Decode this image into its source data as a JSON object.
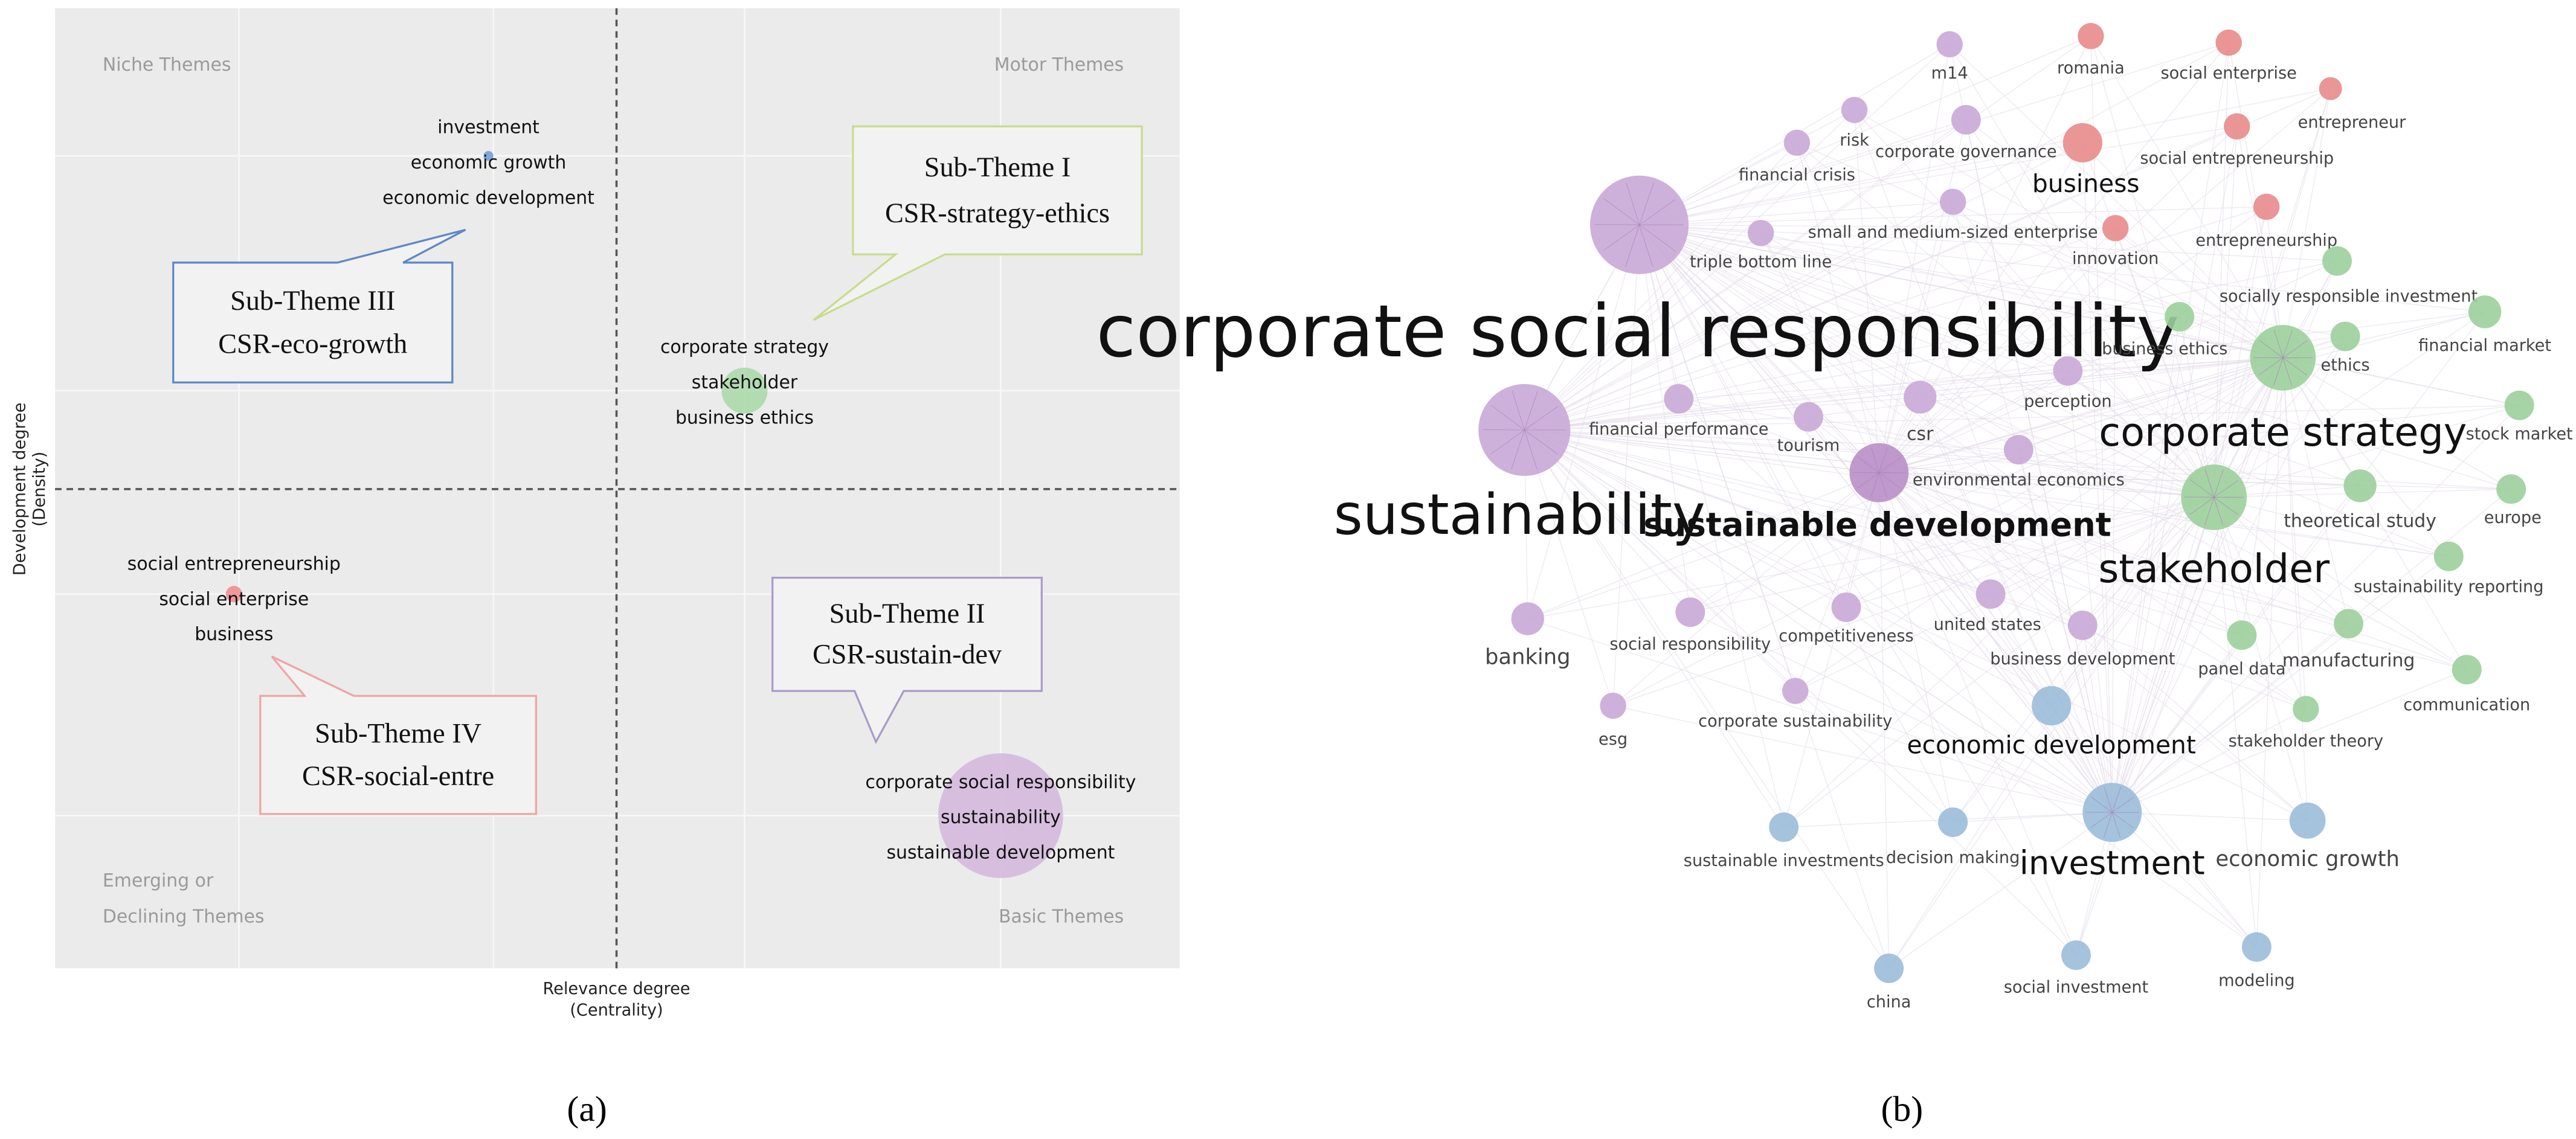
{
  "panel_a": {
    "caption": "(a)",
    "x_axis_label": [
      "Relevance degree",
      "(Centrality)"
    ],
    "y_axis_label": [
      "Development degree",
      "(Density)"
    ],
    "quadrants": [
      [
        "Niche Themes"
      ],
      [
        "Motor Themes"
      ],
      [
        "Emerging or",
        "Declining Themes"
      ],
      [
        "Basic Themes"
      ]
    ],
    "clusters": [
      {
        "terms": [
          "investment",
          "economic growth",
          "economic development"
        ],
        "color": "#6a9bd8"
      },
      {
        "terms": [
          "corporate strategy",
          "stakeholder",
          "business ethics"
        ],
        "color": "#a8d8a8"
      },
      {
        "terms": [
          "social entrepreneurship",
          "social enterprise",
          "business"
        ],
        "color": "#f08a8a"
      },
      {
        "terms": [
          "corporate social responsibility",
          "sustainability",
          "sustainable development"
        ],
        "color": "#d3b6dd"
      }
    ],
    "callouts": [
      {
        "lines": [
          "Sub-Theme I",
          "CSR-strategy-ethics"
        ],
        "color": "#c8dc8c"
      },
      {
        "lines": [
          "Sub-Theme II",
          "CSR-sustain-dev"
        ],
        "color": "#a99bc9"
      },
      {
        "lines": [
          "Sub-Theme III",
          "CSR-eco-growth"
        ],
        "color": "#5f88c6"
      },
      {
        "lines": [
          "Sub-Theme IV",
          "CSR-social-entre"
        ],
        "color": "#f0a4a4"
      }
    ]
  },
  "panel_b": {
    "caption": "(b)",
    "nodes": [
      {
        "label": "m14",
        "color": "#c9a9d6"
      },
      {
        "label": "romania",
        "color": "#e88b8b"
      },
      {
        "label": "social enterprise",
        "color": "#e88b8b"
      },
      {
        "label": "entrepreneur",
        "color": "#e88b8b"
      },
      {
        "label": "risk",
        "color": "#c9a9d6"
      },
      {
        "label": "corporate governance",
        "color": "#c9a9d6"
      },
      {
        "label": "business",
        "color": "#e88b8b"
      },
      {
        "label": "social entrepreneurship",
        "color": "#e88b8b"
      },
      {
        "label": "financial crisis",
        "color": "#c9a9d6"
      },
      {
        "label": "small and medium-sized enterprise",
        "color": "#c9a9d6"
      },
      {
        "label": "innovation",
        "color": "#e88b8b"
      },
      {
        "label": "entrepreneurship",
        "color": "#e88b8b"
      },
      {
        "label": "triple bottom line",
        "color": "#c9a9d6"
      },
      {
        "label": "corporate social responsibility",
        "color": "#c9a9d6"
      },
      {
        "label": "socially responsible investment",
        "color": "#9ccf9c"
      },
      {
        "label": "business ethics",
        "color": "#9ccf9c"
      },
      {
        "label": "ethics",
        "color": "#9ccf9c"
      },
      {
        "label": "financial market",
        "color": "#9ccf9c"
      },
      {
        "label": "corporate strategy",
        "color": "#9ccf9c"
      },
      {
        "label": "perception",
        "color": "#c9a9d6"
      },
      {
        "label": "stock market",
        "color": "#9ccf9c"
      },
      {
        "label": "sustainability",
        "color": "#c9a9d6"
      },
      {
        "label": "financial performance",
        "color": "#c9a9d6"
      },
      {
        "label": "tourism",
        "color": "#c9a9d6"
      },
      {
        "label": "csr",
        "color": "#c9a9d6"
      },
      {
        "label": "environmental economics",
        "color": "#c9a9d6"
      },
      {
        "label": "sustainable development",
        "color": "#b98fc8"
      },
      {
        "label": "stakeholder",
        "color": "#9ccf9c"
      },
      {
        "label": "theoretical study",
        "color": "#9ccf9c"
      },
      {
        "label": "europe",
        "color": "#9ccf9c"
      },
      {
        "label": "sustainability reporting",
        "color": "#9ccf9c"
      },
      {
        "label": "banking",
        "color": "#c9a9d6"
      },
      {
        "label": "social responsibility",
        "color": "#c9a9d6"
      },
      {
        "label": "competitiveness",
        "color": "#c9a9d6"
      },
      {
        "label": "united states",
        "color": "#c9a9d6"
      },
      {
        "label": "business development",
        "color": "#c9a9d6"
      },
      {
        "label": "panel data",
        "color": "#9ccf9c"
      },
      {
        "label": "manufacturing",
        "color": "#9ccf9c"
      },
      {
        "label": "communication",
        "color": "#9ccf9c"
      },
      {
        "label": "stakeholder theory",
        "color": "#9ccf9c"
      },
      {
        "label": "esg",
        "color": "#c9a9d6"
      },
      {
        "label": "corporate sustainability",
        "color": "#c9a9d6"
      },
      {
        "label": "economic development",
        "color": "#9bbcd9"
      },
      {
        "label": "sustainable investments",
        "color": "#9bbcd9"
      },
      {
        "label": "decision making",
        "color": "#9bbcd9"
      },
      {
        "label": "investment",
        "color": "#9bbcd9"
      },
      {
        "label": "economic growth",
        "color": "#9bbcd9"
      },
      {
        "label": "china",
        "color": "#9bbcd9"
      },
      {
        "label": "social investment",
        "color": "#9bbcd9"
      },
      {
        "label": "modeling",
        "color": "#9bbcd9"
      }
    ]
  }
}
